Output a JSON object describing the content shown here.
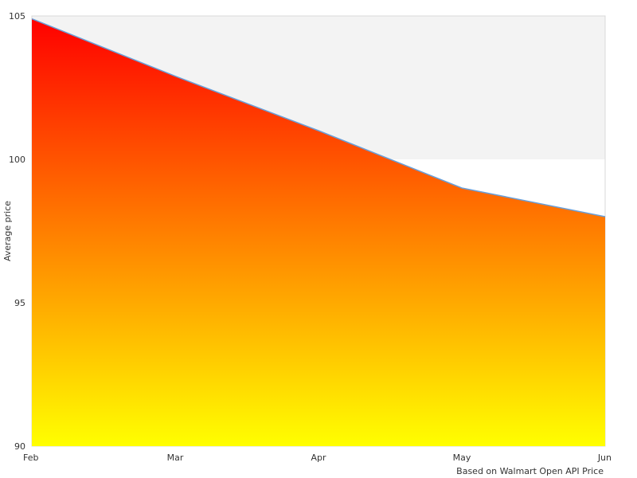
{
  "chart_data": {
    "type": "area",
    "title": "",
    "xlabel": "",
    "ylabel": "Average price",
    "categories": [
      "Feb",
      "Mar",
      "Apr",
      "May",
      "Jun"
    ],
    "series": [
      {
        "values": [
          104.9,
          102.9,
          101.0,
          99.0,
          98.0
        ]
      }
    ],
    "ylim": [
      90,
      105
    ],
    "yticks": [
      90,
      95,
      100,
      105
    ],
    "grid": false,
    "legend": "none",
    "banded_y": true,
    "colors": {
      "fill_top": "#ff0000",
      "fill_bottom": "#ffff00",
      "line": "#6a9fd8",
      "band": "#f3f3f3",
      "frame": "#d8d8d8"
    },
    "credit": "Based on Walmart Open API Price"
  }
}
